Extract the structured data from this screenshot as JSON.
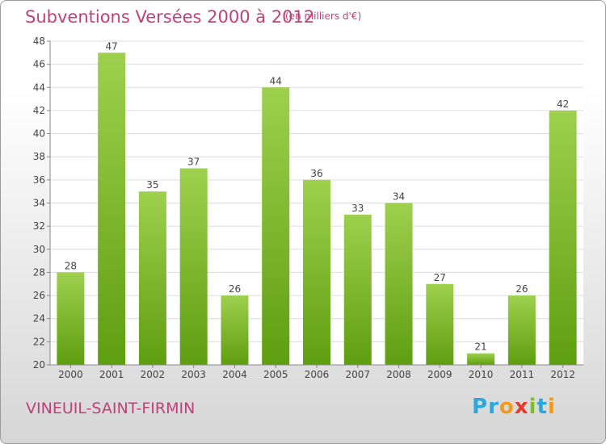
{
  "header": {
    "title": "Subventions Versées 2000 à 2012",
    "unit_note": "(en milliers d'€)"
  },
  "footer": {
    "commune": "VINEUIL-SAINT-FIRMIN",
    "logo": {
      "text": "Proxiti",
      "letters": [
        {
          "ch": "P",
          "color": "#2aa8d8"
        },
        {
          "ch": "r",
          "color": "#2aa8d8"
        },
        {
          "ch": "o",
          "color": "#f39a1c"
        },
        {
          "ch": "x",
          "color": "#e8392d"
        },
        {
          "ch": "i",
          "color": "#7bbf2a"
        },
        {
          "ch": "t",
          "color": "#2aa8d8"
        },
        {
          "ch": "i",
          "color": "#f39a1c"
        }
      ]
    }
  },
  "chart_data": {
    "type": "bar",
    "title": "Subventions Versées 2000 à 2012",
    "subtitle": "(en milliers d'€)",
    "xlabel": "",
    "ylabel": "",
    "categories": [
      "2000",
      "2001",
      "2002",
      "2003",
      "2004",
      "2005",
      "2006",
      "2007",
      "2008",
      "2009",
      "2010",
      "2011",
      "2012"
    ],
    "values": [
      28,
      47,
      35,
      37,
      26,
      44,
      36,
      33,
      34,
      27,
      21,
      26,
      42
    ],
    "ylim": [
      20,
      48
    ],
    "yticks": [
      20,
      22,
      24,
      26,
      28,
      30,
      32,
      34,
      36,
      38,
      40,
      42,
      44,
      46,
      48
    ],
    "grid": true,
    "legend": "none",
    "colors": {
      "bar_light": "#9ed04e",
      "bar_dark": "#5f9e10",
      "grid": "#dcdcdc",
      "axis": "#888888",
      "text": "#444444",
      "title": "#c0407a"
    }
  }
}
